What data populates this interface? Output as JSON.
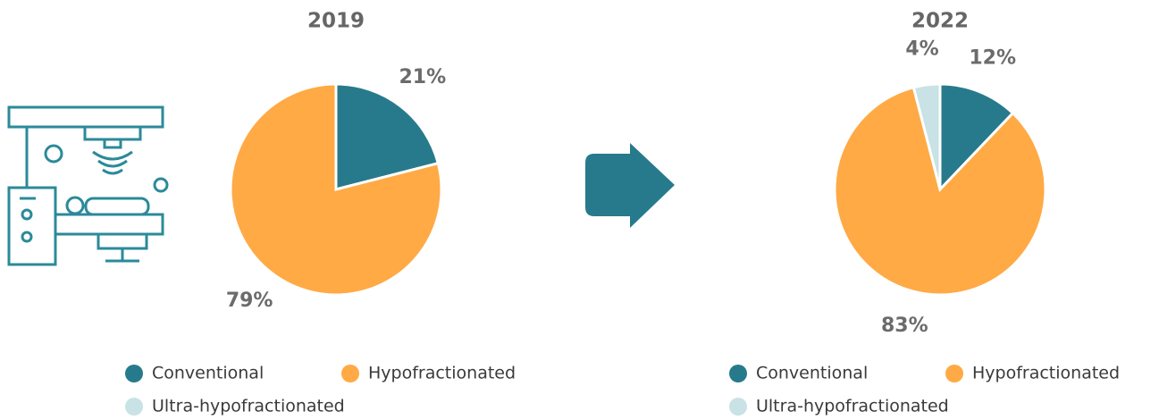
{
  "chart_data": [
    {
      "type": "pie",
      "title": "2019",
      "categories": [
        "Conventional",
        "Hypofractionated",
        "Ultra-hypofractionated"
      ],
      "values": [
        21,
        79,
        null
      ],
      "value_labels": [
        "21%",
        "79%",
        null
      ],
      "colors": [
        "#277a8c",
        "#ffaa45",
        "#c8e2e6"
      ]
    },
    {
      "type": "pie",
      "title": "2022",
      "categories": [
        "Conventional",
        "Hypofractionated",
        "Ultra-hypofractionated"
      ],
      "values": [
        12,
        83,
        4
      ],
      "value_labels": [
        "12%",
        "83%",
        "4%"
      ],
      "colors": [
        "#277a8c",
        "#ffaa45",
        "#c8e2e6"
      ]
    }
  ]
}
